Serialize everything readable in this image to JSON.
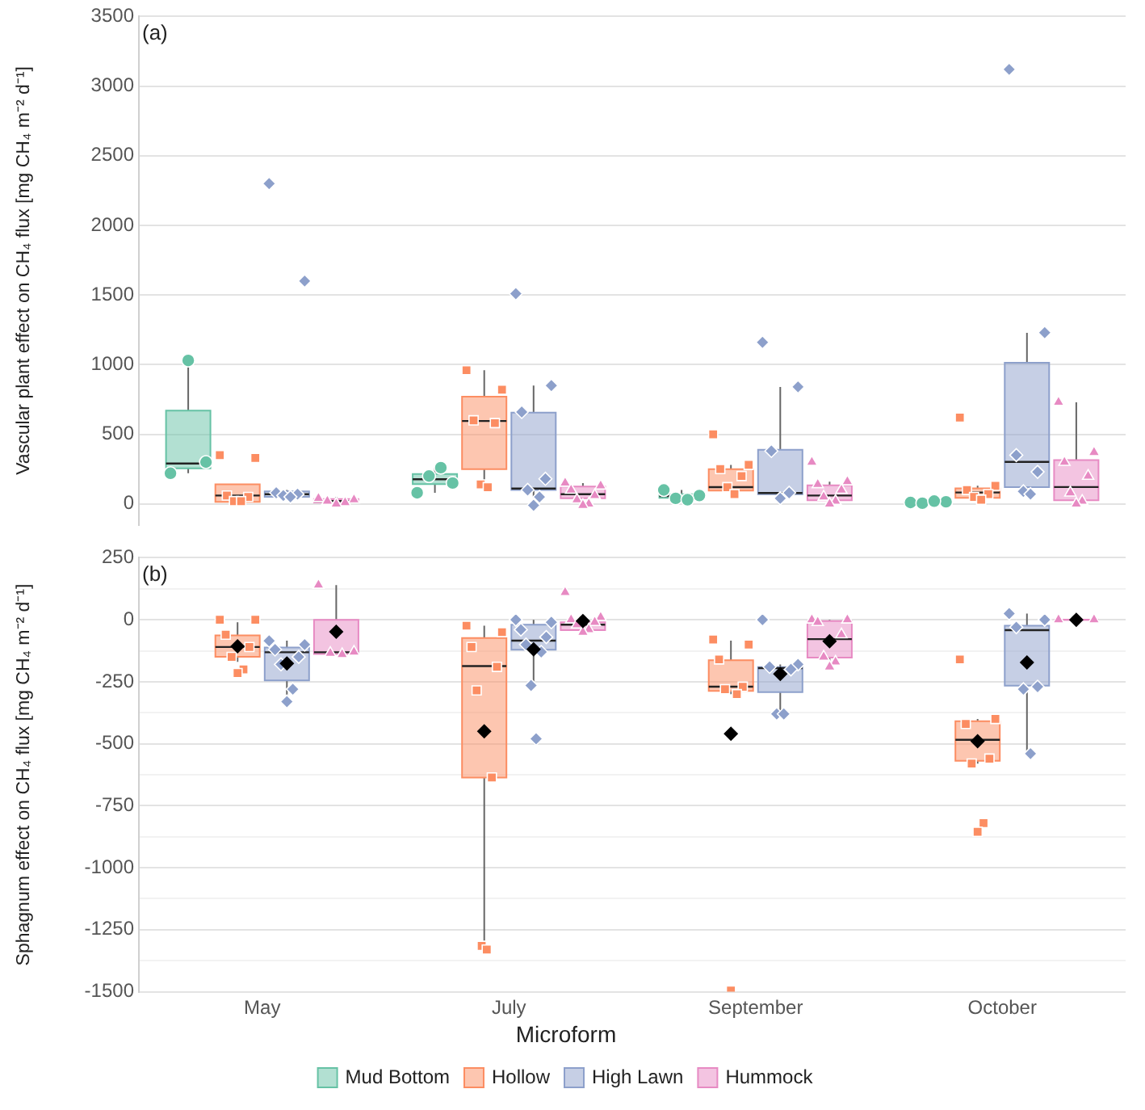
{
  "chart_data": [
    {
      "type": "box",
      "ylabel": "Vascular plant effect on CH₄ flux [mg CH₄ m⁻² d⁻¹]",
      "annotations": [
        "(a)"
      ],
      "categories": [
        "May",
        "July",
        "September",
        "October"
      ],
      "ylim": [
        -150,
        3500
      ],
      "yticks": [
        0,
        500,
        1000,
        1500,
        2000,
        2500,
        3000,
        3500
      ],
      "grid": "y",
      "legend": false,
      "tick_labels": "y",
      "series": [
        {
          "color": "#66c2a5",
          "boxes": [
            {
              "low": 220,
              "q1": 255,
              "median": 290,
              "q3": 670,
              "high": 1030
            },
            {
              "low": 80,
              "q1": 142,
              "median": 177,
              "q3": 215,
              "high": 260
            },
            {
              "low": 30,
              "q1": 43,
              "median": 56,
              "q3": 69,
              "high": 100
            },
            {
              "low": 5,
              "q1": 10,
              "median": 15,
              "q3": 20,
              "high": 20
            }
          ]
        },
        {
          "type": "scatter",
          "color": "#66c2a5",
          "marker": "circle",
          "x": [
            "May",
            "May",
            "May",
            "July",
            "July",
            "July",
            "July",
            "September",
            "September",
            "September",
            "September",
            "October",
            "October",
            "October",
            "October"
          ],
          "values": [
            220,
            300,
            1030,
            80,
            150,
            200,
            260,
            100,
            60,
            40,
            30,
            10,
            15,
            5,
            20
          ]
        },
        {
          "color": "#fc8d62",
          "boxes": [
            {
              "low": 0,
              "q1": 15,
              "median": 60,
              "q3": 140,
              "high": 140
            },
            {
              "low": 120,
              "q1": 250,
              "median": 595,
              "q3": 770,
              "high": 960
            },
            {
              "low": 70,
              "q1": 95,
              "median": 120,
              "q3": 250,
              "high": 280
            },
            {
              "low": 30,
              "q1": 43,
              "median": 82,
              "q3": 112,
              "high": 130
            }
          ]
        },
        {
          "type": "scatter",
          "color": "#fc8d62",
          "marker": "square",
          "x": [
            "May",
            "May",
            "May",
            "May",
            "May",
            "May",
            "July",
            "July",
            "July",
            "July",
            "July",
            "July",
            "September",
            "September",
            "September",
            "September",
            "September",
            "September",
            "October",
            "October",
            "October",
            "October",
            "October",
            "October"
          ],
          "values": [
            350,
            330,
            60,
            50,
            20,
            20,
            960,
            820,
            600,
            580,
            140,
            120,
            500,
            280,
            250,
            200,
            120,
            70,
            620,
            130,
            100,
            70,
            50,
            30
          ]
        },
        {
          "color": "#8da0cb",
          "boxes": [
            {
              "low": 40,
              "q1": 50,
              "median": 70,
              "q3": 90,
              "high": 100
            },
            {
              "low": 50,
              "q1": 100,
              "median": 110,
              "q3": 655,
              "high": 850
            },
            {
              "low": 35,
              "q1": 69,
              "median": 78,
              "q3": 388,
              "high": 840
            },
            {
              "low": 80,
              "q1": 121,
              "median": 302,
              "q3": 1013,
              "high": 1228
            }
          ]
        },
        {
          "type": "scatter",
          "color": "#8da0cb",
          "marker": "diamond",
          "x": [
            "May",
            "May",
            "May",
            "May",
            "May",
            "May",
            "July",
            "July",
            "July",
            "July",
            "July",
            "July",
            "July",
            "September",
            "September",
            "September",
            "September",
            "September",
            "October",
            "October",
            "October",
            "October",
            "October",
            "October"
          ],
          "values": [
            2300,
            1600,
            80,
            70,
            60,
            50,
            1510,
            850,
            660,
            180,
            100,
            50,
            -10,
            1160,
            840,
            380,
            80,
            40,
            3120,
            1230,
            350,
            230,
            90,
            70
          ]
        },
        {
          "color": "#e78ac3",
          "boxes": [
            {
              "low": 0,
              "q1": 10,
              "median": 20,
              "q3": 35,
              "high": 50
            },
            {
              "low": 0,
              "q1": 40,
              "median": 70,
              "q3": 125,
              "high": 150
            },
            {
              "low": 0,
              "q1": 26,
              "median": 60,
              "q3": 133,
              "high": 160
            },
            {
              "low": 0,
              "q1": 26,
              "median": 121,
              "q3": 315,
              "high": 730
            }
          ]
        },
        {
          "type": "scatter",
          "color": "#e78ac3",
          "marker": "triangle",
          "x": [
            "May",
            "May",
            "May",
            "May",
            "May",
            "July",
            "July",
            "July",
            "July",
            "July",
            "July",
            "July",
            "September",
            "September",
            "September",
            "September",
            "September",
            "September",
            "September",
            "October",
            "October",
            "October",
            "October",
            "October",
            "October",
            "October"
          ],
          "values": [
            40,
            30,
            20,
            10,
            0,
            150,
            130,
            100,
            60,
            30,
            0,
            -10,
            300,
            160,
            140,
            100,
            50,
            20,
            0,
            730,
            370,
            300,
            200,
            80,
            20,
            0
          ]
        }
      ]
    },
    {
      "type": "box",
      "ylabel": "Sphagnum effect on CH₄ flux [mg CH₄ m⁻² d⁻¹]",
      "annotations": [
        "(b)"
      ],
      "categories": [
        "May",
        "July",
        "September",
        "October"
      ],
      "ylim": [
        -1500,
        250
      ],
      "yticks": [
        -1500,
        {
          "value": -1375,
          "label": null
        },
        -1250,
        {
          "value": -1125,
          "label": null
        },
        -1000,
        {
          "value": -875,
          "label": null
        },
        -750,
        {
          "value": -625,
          "label": null
        },
        -500,
        {
          "value": -375,
          "label": null
        },
        -250,
        {
          "value": -125,
          "label": null
        },
        0,
        {
          "value": 125,
          "label": null
        },
        250
      ],
      "grid": "y",
      "legend": "bottom",
      "legend_title": "Microform",
      "series": [
        {
          "name": "Mud Bottom",
          "color": "#66c2a5",
          "boxes": [
            null,
            null,
            null,
            null
          ]
        },
        {
          "name": "Hollow",
          "color": "#fc8d62",
          "boxes": [
            {
              "low": -170,
              "q1": -149,
              "median": -110,
              "q3": -63,
              "high": -10,
              "mean": -107
            },
            {
              "low": -1330,
              "q1": -636,
              "median": -187,
              "q3": -74,
              "high": -24,
              "mean": -450
            },
            {
              "low": -300,
              "q1": -287,
              "median": -270,
              "q3": -163,
              "high": -84,
              "mean": -460
            },
            {
              "low": -580,
              "q1": -569,
              "median": -484,
              "q3": -409,
              "high": -400,
              "mean": -490
            }
          ]
        },
        {
          "type": "scatter",
          "color": "#fc8d62",
          "marker": "square",
          "x": [
            "May",
            "May",
            "May",
            "May",
            "May",
            "May",
            "May",
            "July",
            "July",
            "July",
            "July",
            "July",
            "July",
            "July",
            "July",
            "September",
            "September",
            "September",
            "September",
            "September",
            "September",
            "September",
            "October",
            "October",
            "October",
            "October",
            "October",
            "October",
            "October"
          ],
          "values": [
            0,
            0,
            -60,
            -110,
            -150,
            -200,
            -215,
            -24,
            -50,
            -110,
            -190,
            -285,
            -636,
            -1315,
            -1330,
            -80,
            -100,
            -160,
            -270,
            -280,
            -300,
            -1495,
            -160,
            -400,
            -420,
            -560,
            -580,
            -820,
            -855
          ]
        },
        {
          "name": "High Lawn",
          "color": "#8da0cb",
          "boxes": [
            {
              "low": -330,
              "q1": -245,
              "median": -131,
              "q3": -112,
              "high": -84,
              "mean": -176
            },
            {
              "low": -264,
              "q1": -121,
              "median": -84,
              "q3": -20,
              "high": 0,
              "mean": -119
            },
            {
              "low": -383,
              "q1": -292,
              "median": -195,
              "q3": -191,
              "high": -180,
              "mean": -219
            },
            {
              "low": -540,
              "q1": -266,
              "median": -42,
              "q3": -24,
              "high": 25,
              "mean": -172
            }
          ]
        },
        {
          "type": "scatter",
          "color": "#8da0cb",
          "marker": "diamond",
          "x": [
            "May",
            "May",
            "May",
            "May",
            "May",
            "May",
            "May",
            "July",
            "July",
            "July",
            "July",
            "July",
            "July",
            "July",
            "July",
            "September",
            "September",
            "September",
            "September",
            "September",
            "September",
            "October",
            "October",
            "October",
            "October",
            "October",
            "October"
          ],
          "values": [
            -85,
            -100,
            -120,
            -150,
            -180,
            -280,
            -330,
            0,
            -10,
            -40,
            -70,
            -100,
            -130,
            -265,
            -480,
            0,
            -180,
            -190,
            -200,
            -380,
            -380,
            25,
            0,
            -30,
            -270,
            -280,
            -540
          ]
        },
        {
          "name": "Hummock",
          "color": "#e78ac3",
          "boxes": [
            {
              "low": -140,
              "q1": -138,
              "median": -131,
              "q3": 0,
              "high": 140,
              "mean": -48
            },
            {
              "low": -50,
              "q1": -42,
              "median": -20,
              "q3": -10,
              "high": 10,
              "mean": -5
            },
            {
              "low": -181,
              "q1": -153,
              "median": -78,
              "q3": -5,
              "high": 0,
              "mean": -87
            },
            {
              "low": 0,
              "q1": 0,
              "median": 0,
              "q3": 0,
              "high": 0,
              "mean": 0
            }
          ]
        },
        {
          "type": "scatter",
          "color": "#e78ac3",
          "marker": "triangle",
          "x": [
            "May",
            "May",
            "May",
            "May",
            "July",
            "July",
            "July",
            "July",
            "July",
            "July",
            "July",
            "September",
            "September",
            "September",
            "September",
            "September",
            "September",
            "September",
            "October",
            "October"
          ],
          "values": [
            140,
            -130,
            -135,
            -140,
            110,
            10,
            0,
            -10,
            -20,
            -40,
            -50,
            0,
            0,
            -10,
            -60,
            -150,
            -170,
            -190,
            0,
            0
          ]
        }
      ]
    }
  ]
}
